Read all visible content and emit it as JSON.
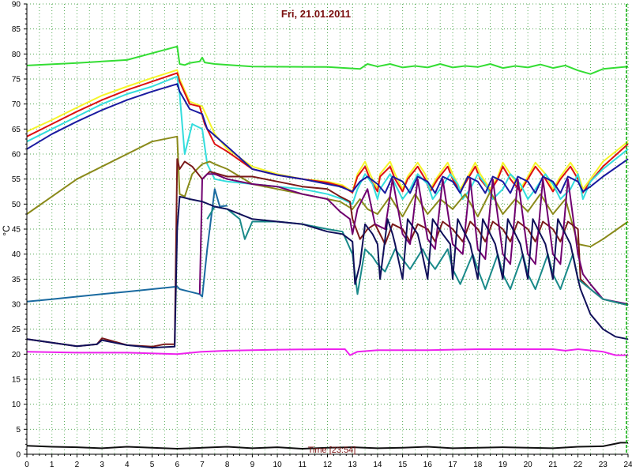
{
  "chart_data": {
    "type": "line",
    "title": "Fri, 21.01.2011",
    "xlabel": "Time [23:54]",
    "ylabel": "°C",
    "xlim": [
      0,
      24
    ],
    "ylim": [
      0,
      90
    ],
    "xticks": [
      0,
      1,
      2,
      3,
      4,
      5,
      6,
      7,
      8,
      9,
      10,
      11,
      12,
      13,
      14,
      15,
      16,
      17,
      18,
      19,
      20,
      21,
      22,
      23,
      24
    ],
    "yticks": [
      0,
      5,
      10,
      15,
      20,
      25,
      30,
      35,
      40,
      45,
      50,
      55,
      60,
      65,
      70,
      75,
      80,
      85,
      90
    ],
    "grid": true,
    "colors": {
      "background": "#ffffff",
      "grid": "#55aa55",
      "title": "#7a1010",
      "marker": "#00aa00"
    },
    "series": [
      {
        "color": "#33dd33",
        "x": [
          0,
          2,
          4,
          6,
          6.1,
          6.3,
          6.5,
          6.9,
          7,
          7.1,
          7.5,
          9,
          12,
          13.3,
          13.6,
          14,
          14.5,
          15,
          15.5,
          16,
          16.5,
          17,
          17.5,
          18,
          18.5,
          19,
          19.5,
          20,
          20.5,
          21,
          21.5,
          22,
          22.5,
          23,
          24
        ],
        "y": [
          77.7,
          78.2,
          78.8,
          81.5,
          78,
          77.8,
          78.2,
          78.5,
          79.3,
          78.3,
          78,
          77.5,
          77.4,
          77,
          78,
          77.5,
          78,
          77.3,
          77.6,
          77.3,
          78,
          77.3,
          77.6,
          77.4,
          78,
          77.2,
          77.6,
          77.3,
          77.9,
          77.2,
          77.7,
          76.7,
          76,
          77,
          77.5
        ]
      },
      {
        "color": "#f5f52a",
        "x": [
          0,
          1,
          2,
          3,
          4,
          5,
          6,
          6.1,
          6.5,
          7,
          7.5,
          8,
          9,
          10,
          11,
          12,
          12.6,
          13,
          13.2,
          13.5,
          13.7,
          14,
          14.1,
          14.5,
          14.7,
          15,
          15.2,
          15.6,
          15.9,
          16.1,
          16.4,
          16.8,
          17,
          17.3,
          17.6,
          17.9,
          18.1,
          18.5,
          18.8,
          19,
          19.3,
          19.7,
          20,
          20.3,
          20.7,
          21,
          21.3,
          21.7,
          22,
          22.2,
          22.5,
          23,
          24
        ],
        "y": [
          64.5,
          66.8,
          69.3,
          71.7,
          73.5,
          75.2,
          76.8,
          75,
          70.5,
          69.5,
          64,
          61,
          57.5,
          56,
          55,
          54.5,
          53.8,
          52.5,
          56,
          58.5,
          56,
          53,
          56,
          58.5,
          56,
          53,
          55.5,
          58.3,
          56,
          53,
          55.5,
          58.3,
          56,
          53,
          55.5,
          58.3,
          56,
          53,
          55.5,
          58.3,
          56,
          53,
          55.5,
          58.3,
          56,
          53,
          55.5,
          58.3,
          56,
          53,
          55,
          58.5,
          62.5
        ]
      },
      {
        "color": "#dd1111",
        "x": [
          0,
          1,
          2,
          3,
          4,
          5,
          6,
          6.1,
          6.5,
          6.9,
          7.1,
          7.5,
          8,
          9,
          10,
          11,
          12,
          12.6,
          13,
          13.2,
          13.5,
          13.7,
          14,
          14.1,
          14.5,
          14.7,
          15,
          15.2,
          15.6,
          15.9,
          16.1,
          16.4,
          16.8,
          17,
          17.3,
          17.6,
          17.9,
          18.1,
          18.5,
          18.8,
          19,
          19.3,
          19.7,
          20,
          20.3,
          20.7,
          21,
          21.3,
          21.7,
          22,
          22.2,
          22.5,
          23,
          24
        ],
        "y": [
          63.5,
          66,
          68.5,
          70.8,
          72.8,
          74.5,
          76.2,
          74.5,
          70,
          69.5,
          66,
          62,
          60.5,
          57,
          55.8,
          55,
          54.3,
          53.5,
          52.3,
          55.5,
          57.5,
          55,
          52.5,
          55.5,
          57.5,
          55,
          52.5,
          55,
          57.5,
          55,
          52.5,
          55,
          57.5,
          55,
          52.5,
          55,
          57.5,
          55,
          52.5,
          55,
          57.5,
          55,
          52.5,
          55,
          57.5,
          55,
          52.5,
          55,
          57.5,
          55,
          52.3,
          54.5,
          57.5,
          62
        ]
      },
      {
        "color": "#33dddd",
        "x": [
          0,
          1,
          2,
          3,
          4,
          5,
          6,
          6.1,
          6.3,
          6.6,
          7,
          7.2,
          7.5,
          8,
          9,
          10,
          11,
          12,
          12.6,
          13,
          13.2,
          13.5,
          13.8,
          14,
          14.1,
          14.5,
          14.7,
          15,
          15.3,
          15.6,
          16,
          16.2,
          16.5,
          16.9,
          17.2,
          17.4,
          17.7,
          18,
          18.3,
          18.6,
          19,
          19.3,
          19.7,
          20,
          20.3,
          20.7,
          21,
          21.3,
          21.7,
          22,
          22.2,
          22.5,
          23,
          24
        ],
        "y": [
          62.5,
          65,
          67.5,
          70,
          72,
          73.5,
          75.5,
          72,
          60,
          66,
          65,
          58,
          55,
          54.5,
          54,
          53.5,
          53,
          52,
          51,
          50,
          53,
          56,
          54,
          51,
          53,
          56,
          54,
          51,
          53,
          56,
          54,
          51,
          53,
          56,
          54,
          51,
          53,
          56,
          54,
          51,
          53,
          56,
          54,
          51,
          53,
          56,
          54,
          51,
          53,
          56,
          51,
          54.5,
          57,
          61
        ]
      },
      {
        "color": "#1a1aa0",
        "x": [
          0,
          1,
          2,
          3,
          4,
          5,
          6,
          6.1,
          6.5,
          7,
          7.2,
          8,
          9,
          10,
          11,
          12,
          12.5,
          13,
          13.3,
          13.6,
          14,
          14.3,
          14.6,
          15,
          15.3,
          15.6,
          16,
          16.3,
          16.6,
          17,
          17.3,
          17.6,
          18,
          18.3,
          18.6,
          19,
          19.3,
          19.6,
          20,
          20.3,
          20.6,
          21,
          21.3,
          21.6,
          22,
          22.2,
          22.5,
          23,
          24
        ],
        "y": [
          61,
          64,
          66.5,
          68.8,
          70.8,
          72.5,
          74,
          72.5,
          69,
          68,
          65,
          61.5,
          57,
          55.8,
          55,
          54,
          53.5,
          52.5,
          54.5,
          55.5,
          54,
          52.2,
          55.5,
          54.5,
          52.2,
          55.5,
          54.5,
          52.2,
          55.5,
          54.5,
          52.2,
          55.5,
          54.5,
          52.2,
          55.5,
          54.5,
          52.2,
          55.5,
          54.5,
          52.2,
          55.5,
          54.5,
          52.2,
          55.5,
          54.5,
          52.5,
          53.5,
          55.5,
          59
        ]
      },
      {
        "color": "#8a8a1a",
        "x": [
          0,
          1,
          2,
          3,
          4,
          5,
          6,
          6.1,
          6.3,
          6.6,
          7,
          7.3,
          7.5,
          8,
          9,
          10,
          11,
          12,
          12.5,
          13,
          13.3,
          13.6,
          14,
          14.5,
          15,
          15.5,
          16,
          16.5,
          17,
          17.5,
          18,
          18.5,
          19,
          19.5,
          20,
          20.5,
          21,
          21.5,
          22,
          22.5,
          23,
          24
        ],
        "y": [
          48,
          51.5,
          55,
          57.5,
          60,
          62.5,
          63.5,
          52,
          51.5,
          56,
          58,
          58.5,
          58,
          57,
          54,
          53,
          52,
          51,
          50.5,
          49,
          51,
          49,
          48,
          51.5,
          47.5,
          52,
          48,
          51,
          49,
          52,
          47.5,
          52.5,
          48,
          51,
          48.5,
          52,
          48,
          51,
          42,
          41.5,
          43,
          46.5
        ]
      },
      {
        "color": "#7a1a1a",
        "x": [
          0,
          1,
          2,
          2.8,
          3,
          3.5,
          4,
          5,
          5.5,
          5.9,
          6,
          6.1,
          6.3,
          6.6,
          7,
          7.3,
          8,
          9,
          10,
          11,
          12,
          12.5,
          12.9,
          13,
          13.3,
          13.6,
          13.9,
          14.3,
          14.6,
          15,
          15.3,
          15.6,
          16,
          16.3,
          16.6,
          17,
          17.4,
          17.7,
          18,
          18.3,
          18.6,
          19,
          19.3,
          19.6,
          20,
          20.3,
          20.6,
          21,
          21.3,
          21.6,
          22,
          22.1,
          22.5,
          23,
          24
        ],
        "y": [
          23,
          22.3,
          21.6,
          22,
          23.2,
          22.5,
          21.8,
          21.5,
          22,
          22,
          59,
          57,
          58.5,
          57.5,
          55,
          56.5,
          55.5,
          55.5,
          54.5,
          53.5,
          53,
          51.5,
          50.5,
          47,
          43,
          45,
          46,
          42,
          46,
          45,
          42.5,
          46,
          45,
          42.5,
          46.5,
          45,
          42.5,
          46.5,
          45,
          42.5,
          46.5,
          45,
          42.5,
          46.5,
          45,
          42.5,
          46.5,
          45,
          42.5,
          46.5,
          45,
          35,
          33,
          31,
          29.8
        ]
      },
      {
        "color": "#1a6aa0",
        "x": [
          0,
          1,
          2,
          3,
          4,
          5,
          6,
          6.1,
          6.5,
          6.9,
          7,
          7.2,
          7.5,
          7.7,
          8
        ],
        "y": [
          30.5,
          31,
          31.5,
          32,
          32.5,
          33,
          33.5,
          33,
          32.5,
          32,
          31.5,
          41,
          53,
          49.5,
          49.7
        ]
      },
      {
        "color": "#700070",
        "x": [
          6.9,
          7,
          7.2,
          7.5,
          8,
          9,
          10,
          11,
          12,
          12.5,
          12.9,
          13,
          13.2,
          13.6,
          13.9,
          14.3,
          14.6,
          15,
          15.3,
          15.6,
          16,
          16.3,
          16.6,
          17,
          17.4,
          17.7,
          18,
          18.3,
          18.6,
          19,
          19.3,
          19.6,
          20,
          20.3,
          20.6,
          21,
          21.3,
          21.6,
          22,
          22.2,
          22.5,
          23,
          24
        ],
        "y": [
          32,
          55,
          56,
          56,
          55,
          54,
          53.5,
          52,
          51,
          48.5,
          47,
          44,
          49,
          53,
          46,
          45,
          55,
          44,
          42,
          55,
          43,
          41,
          55,
          42,
          40,
          55,
          41,
          39,
          55,
          40,
          38,
          55,
          40,
          38,
          55,
          40,
          38,
          55,
          40,
          36,
          34,
          31,
          30
        ]
      },
      {
        "color": "#1a8a8a",
        "x": [
          7.2,
          7.5,
          8,
          8.5,
          8.7,
          9,
          10,
          11,
          12,
          12.6,
          13,
          13.2,
          13.5,
          13.8,
          14,
          14.3,
          14.7,
          15,
          15.3,
          15.8,
          16,
          16.3,
          16.8,
          17,
          17.3,
          17.8,
          18,
          18.3,
          18.8,
          19,
          19.3,
          19.8,
          20,
          20.3,
          20.8,
          21,
          21.3,
          21.8,
          22,
          22.5,
          23,
          24
        ],
        "y": [
          47,
          49.5,
          49,
          47,
          43,
          46.5,
          46.5,
          46,
          45,
          44.5,
          40,
          32,
          41,
          39.5,
          38,
          36.5,
          41,
          39,
          37,
          41,
          39,
          37,
          41,
          37,
          34,
          40,
          37,
          33,
          40,
          36,
          33,
          40,
          36,
          33,
          40,
          36,
          33,
          40,
          35,
          33,
          31,
          29.8
        ]
      },
      {
        "color": "#10105a",
        "x": [
          0,
          1,
          2,
          2.8,
          3,
          3.5,
          4,
          5,
          5.9,
          6,
          6.1,
          6.5,
          7,
          7.5,
          8,
          9,
          10,
          11,
          12,
          12.6,
          13,
          13.1,
          13.3,
          13.5,
          13.8,
          14,
          14.1,
          14.4,
          14.6,
          14.7,
          15,
          15.2,
          15.6,
          15.7,
          16,
          16.2,
          16.6,
          16.9,
          17,
          17.2,
          17.5,
          17.7,
          18,
          18.2,
          18.5,
          18.7,
          19,
          19.2,
          19.5,
          19.7,
          20,
          20.2,
          20.5,
          20.7,
          21,
          21.2,
          21.5,
          21.7,
          22,
          22.1,
          22.5,
          23,
          23.5,
          24
        ],
        "y": [
          23,
          22.3,
          21.6,
          22,
          22.8,
          22.3,
          21.8,
          21.3,
          21.5,
          45,
          51.5,
          51,
          50.5,
          49.5,
          49,
          47,
          46.5,
          46,
          44.5,
          44,
          42.5,
          34,
          38,
          46,
          44,
          42,
          35,
          47,
          44,
          42,
          35,
          47,
          44,
          42,
          35,
          47,
          44,
          42,
          35,
          47,
          44,
          42,
          35,
          47,
          44,
          42,
          35,
          47,
          44,
          42,
          35,
          47,
          44,
          42,
          35,
          47,
          44,
          42,
          35,
          33,
          28,
          25,
          23.5,
          23
        ]
      },
      {
        "color": "#ee22ee",
        "x": [
          0,
          2,
          4,
          6,
          7,
          8,
          10,
          12,
          12.7,
          12.9,
          13.2,
          14,
          16,
          18,
          20,
          21,
          21.5,
          22,
          23,
          23.5,
          24
        ],
        "y": [
          20.5,
          20.3,
          20.3,
          20,
          20.5,
          20.7,
          20.9,
          21,
          21,
          19.8,
          20.5,
          20.8,
          20.8,
          21,
          21,
          21,
          20.7,
          21,
          20.5,
          19.8,
          19.8
        ]
      },
      {
        "color": "#111111",
        "x": [
          0,
          1,
          2,
          3,
          4,
          5,
          6,
          7,
          8,
          9,
          10,
          11,
          12,
          13,
          14,
          15,
          16,
          17,
          18,
          19,
          20,
          21,
          22,
          23,
          23.7,
          24
        ],
        "y": [
          1.7,
          1.5,
          1.4,
          1.2,
          1.5,
          1.3,
          1.1,
          1.3,
          1.5,
          1.2,
          1.4,
          1.1,
          1.3,
          1.4,
          1.2,
          1.3,
          1.5,
          1.2,
          1.3,
          1.4,
          1.3,
          1.2,
          1.5,
          1.6,
          2.3,
          2.3
        ]
      }
    ]
  }
}
